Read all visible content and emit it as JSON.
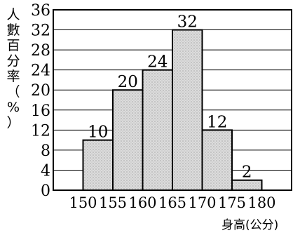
{
  "chart_data": {
    "type": "bar",
    "ylabel": "人數百分率（%）",
    "xlabel": "身高(公分)",
    "x_edges": [
      "150",
      "155",
      "160",
      "165",
      "170",
      "175",
      "180"
    ],
    "bins": [
      {
        "range": [
          150,
          155
        ],
        "value": 10
      },
      {
        "range": [
          155,
          160
        ],
        "value": 20
      },
      {
        "range": [
          160,
          165
        ],
        "value": 24
      },
      {
        "range": [
          165,
          170
        ],
        "value": 32
      },
      {
        "range": [
          170,
          175
        ],
        "value": 12
      },
      {
        "range": [
          175,
          180
        ],
        "value": 2
      }
    ],
    "xlim": [
      145,
      185
    ],
    "ylim": [
      0,
      36
    ],
    "y_ticks": [
      "0",
      "4",
      "8",
      "12",
      "16",
      "20",
      "24",
      "28",
      "32",
      "36"
    ],
    "grid": true,
    "legend": "none"
  }
}
